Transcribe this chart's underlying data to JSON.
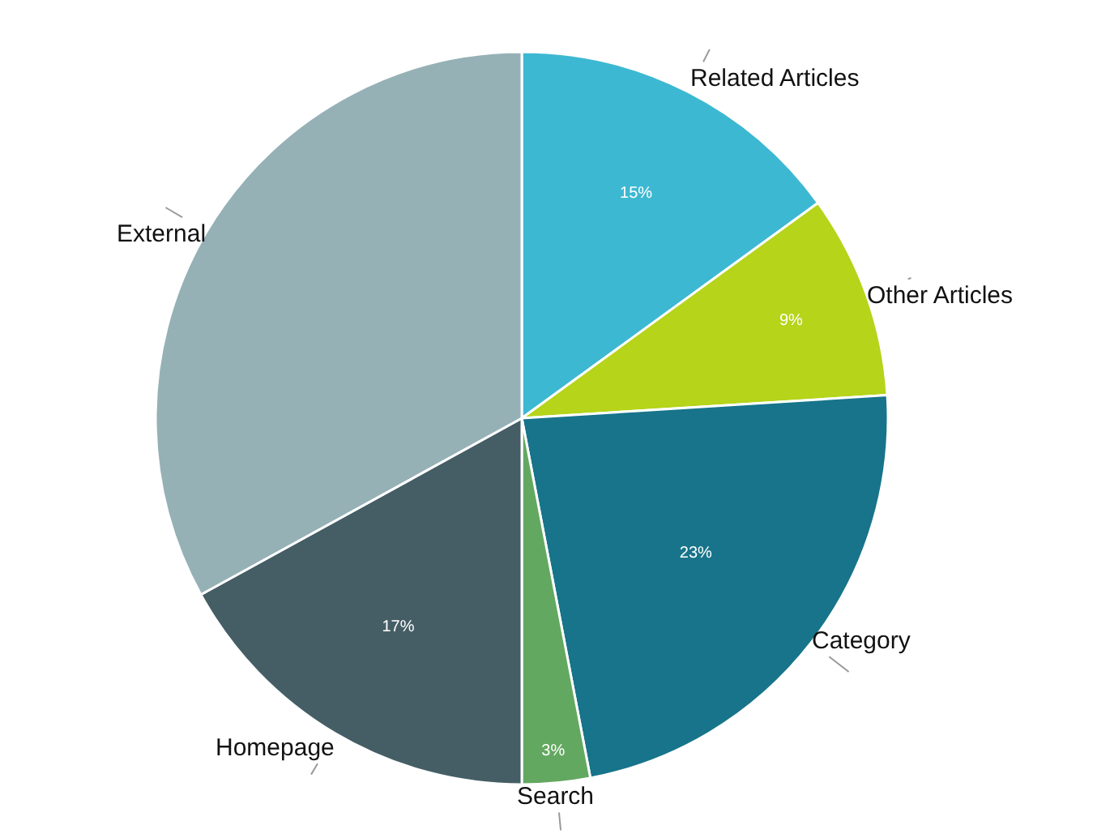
{
  "chart_data": {
    "type": "pie",
    "categories": [
      "Related Articles",
      "Other Articles",
      "Category",
      "Search",
      "Homepage",
      "External"
    ],
    "values": [
      15,
      9,
      23,
      3,
      17,
      33
    ],
    "colors": [
      "#3db8d2",
      "#b5d41a",
      "#17748a",
      "#63a860",
      "#455e66",
      "#95b1b6"
    ],
    "value_labels": [
      "15%",
      "9%",
      "23%",
      "3%",
      "17%",
      null
    ]
  }
}
